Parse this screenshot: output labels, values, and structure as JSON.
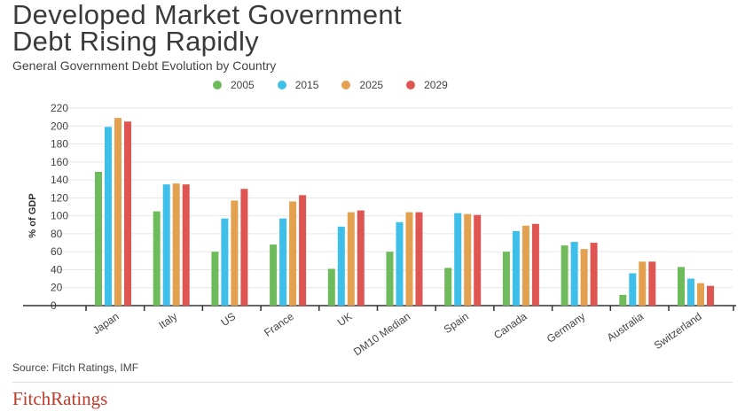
{
  "title_line1": "Developed Market Government",
  "title_line2": "Debt Rising Rapidly",
  "subtitle": "General Government Debt Evolution by Country",
  "source": "Source: Fitch Ratings, IMF",
  "logo": "FitchRatings",
  "chart_data": {
    "type": "bar",
    "title": "Developed Market Government Debt Rising Rapidly",
    "subtitle": "General Government Debt Evolution by Country",
    "xlabel": "",
    "ylabel": "% of GDP",
    "ylim": [
      0,
      220
    ],
    "yticks": [
      0,
      20,
      40,
      60,
      80,
      100,
      120,
      140,
      160,
      180,
      200,
      220
    ],
    "grid": true,
    "legend_position": "top",
    "categories": [
      "Japan",
      "Italy",
      "US",
      "France",
      "UK",
      "DM10 Median",
      "Spain",
      "Canada",
      "Germany",
      "Australia",
      "Switzerland"
    ],
    "series": [
      {
        "name": "2005",
        "color": "#6dbb5a",
        "values": [
          149,
          105,
          60,
          68,
          41,
          60,
          42,
          60,
          67,
          12,
          43
        ]
      },
      {
        "name": "2015",
        "color": "#3dbfea",
        "values": [
          199,
          135,
          97,
          97,
          88,
          93,
          103,
          83,
          71,
          36,
          30
        ]
      },
      {
        "name": "2025",
        "color": "#e3a04f",
        "values": [
          209,
          136,
          117,
          116,
          104,
          104,
          102,
          89,
          63,
          49,
          25
        ]
      },
      {
        "name": "2029",
        "color": "#df5552",
        "values": [
          205,
          135,
          130,
          123,
          106,
          104,
          101,
          91,
          70,
          49,
          22
        ]
      }
    ]
  }
}
